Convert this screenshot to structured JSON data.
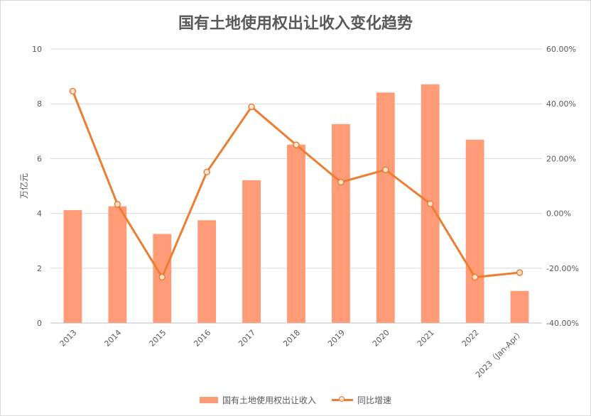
{
  "chart_data": {
    "type": "bar",
    "title": "国有土地使用权出让收入变化趋势",
    "categories": [
      "2013",
      "2014",
      "2015",
      "2016",
      "2017",
      "2018",
      "2019",
      "2020",
      "2021",
      "2022",
      "2023（Jan-Apr）"
    ],
    "series": [
      {
        "name": "国有土地使用权出让收入",
        "type": "bar",
        "axis": "left",
        "color": "#ff9b77",
        "values": [
          4.12,
          4.26,
          3.25,
          3.75,
          5.21,
          6.51,
          7.26,
          8.41,
          8.71,
          6.69,
          1.17
        ]
      },
      {
        "name": "同比增速",
        "type": "line",
        "axis": "right",
        "color": "#ed7d31",
        "marker_fill": "#fbe5d6",
        "values": [
          44.6,
          3.3,
          -23.3,
          15.1,
          38.9,
          25.0,
          11.4,
          15.9,
          3.5,
          -23.3,
          -21.6
        ]
      }
    ],
    "ylabel": "万亿元",
    "ylim": [
      0,
      10
    ],
    "yticks": [
      0,
      2,
      4,
      6,
      8,
      10
    ],
    "y2lim": [
      -40,
      60
    ],
    "y2ticks": [
      "-40.00%",
      "-20.00%",
      "0.00%",
      "20.00%",
      "40.00%",
      "60.00%"
    ],
    "grid": true,
    "legend_position": "bottom"
  }
}
